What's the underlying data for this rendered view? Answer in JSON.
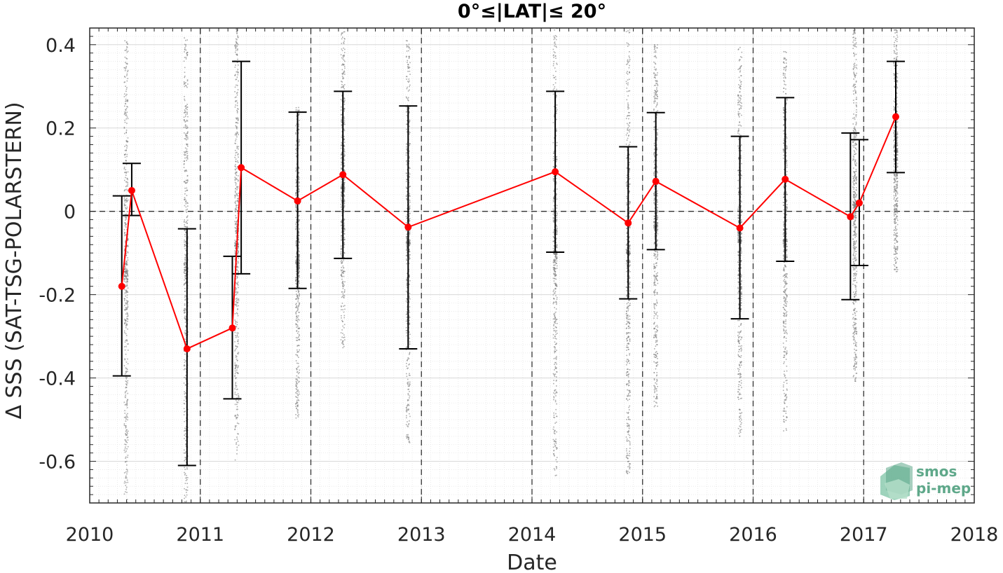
{
  "chart_data": {
    "type": "scatter",
    "title": "0°≤|LAT|≤ 20°",
    "xlabel": "Date",
    "ylabel": "Δ SSS (SAT-TSG-POLARSTERN)",
    "xlim": [
      2010,
      2018
    ],
    "ylim": [
      -0.7,
      0.44
    ],
    "xticks": [
      "2010",
      "2011",
      "2012",
      "2013",
      "2014",
      "2015",
      "2016",
      "2017",
      "2018"
    ],
    "yticks": [
      "0.4",
      "0.2",
      "0",
      "-0.2",
      "-0.4",
      "-0.6"
    ],
    "grid": true,
    "year_separators": [
      2011,
      2012,
      2013,
      2014,
      2015,
      2016,
      2017
    ],
    "zero_line": 0,
    "series": [
      {
        "kind": "mean",
        "color": "#ff0000",
        "x": [
          2010.29,
          2010.38,
          2010.88,
          2011.29,
          2011.37,
          2011.88,
          2012.29,
          2012.88,
          2014.21,
          2014.87,
          2015.12,
          2015.88,
          2016.29,
          2016.88,
          2016.96,
          2017.29
        ],
        "y": [
          -0.18,
          0.05,
          -0.33,
          -0.28,
          0.105,
          0.025,
          0.088,
          -0.038,
          0.095,
          -0.028,
          0.072,
          -0.04,
          0.077,
          -0.013,
          0.02,
          0.227
        ],
        "err_low": [
          -0.395,
          -0.01,
          -0.61,
          -0.45,
          -0.15,
          -0.185,
          -0.113,
          -0.33,
          -0.098,
          -0.21,
          -0.092,
          -0.258,
          -0.12,
          -0.212,
          -0.13,
          0.093
        ],
        "err_high": [
          0.037,
          0.115,
          -0.042,
          -0.108,
          0.36,
          0.238,
          0.288,
          0.253,
          0.288,
          0.155,
          0.237,
          0.18,
          0.273,
          0.188,
          0.172,
          0.36
        ]
      }
    ],
    "raw_clusters": [
      {
        "x": 2010.33,
        "ymin": -0.7,
        "ymax": 0.41
      },
      {
        "x": 2010.87,
        "ymin": -0.7,
        "ymax": 0.42
      },
      {
        "x": 2011.33,
        "ymin": -0.6,
        "ymax": 0.44
      },
      {
        "x": 2011.88,
        "ymin": -0.5,
        "ymax": 0.25
      },
      {
        "x": 2012.29,
        "ymin": -0.33,
        "ymax": 0.44
      },
      {
        "x": 2012.88,
        "ymin": -0.56,
        "ymax": 0.41
      },
      {
        "x": 2014.21,
        "ymin": -0.64,
        "ymax": 0.44
      },
      {
        "x": 2014.87,
        "ymin": -0.64,
        "ymax": 0.44
      },
      {
        "x": 2015.12,
        "ymin": -0.47,
        "ymax": 0.4
      },
      {
        "x": 2015.88,
        "ymin": -0.54,
        "ymax": 0.4
      },
      {
        "x": 2016.29,
        "ymin": -0.53,
        "ymax": 0.39
      },
      {
        "x": 2016.92,
        "ymin": -0.41,
        "ymax": 0.44
      },
      {
        "x": 2017.29,
        "ymin": -0.15,
        "ymax": 0.44
      }
    ],
    "scatter_color": "#808080"
  },
  "logo": {
    "line1": "smos",
    "line2": "pi-mep",
    "color": "#5fa88a"
  }
}
